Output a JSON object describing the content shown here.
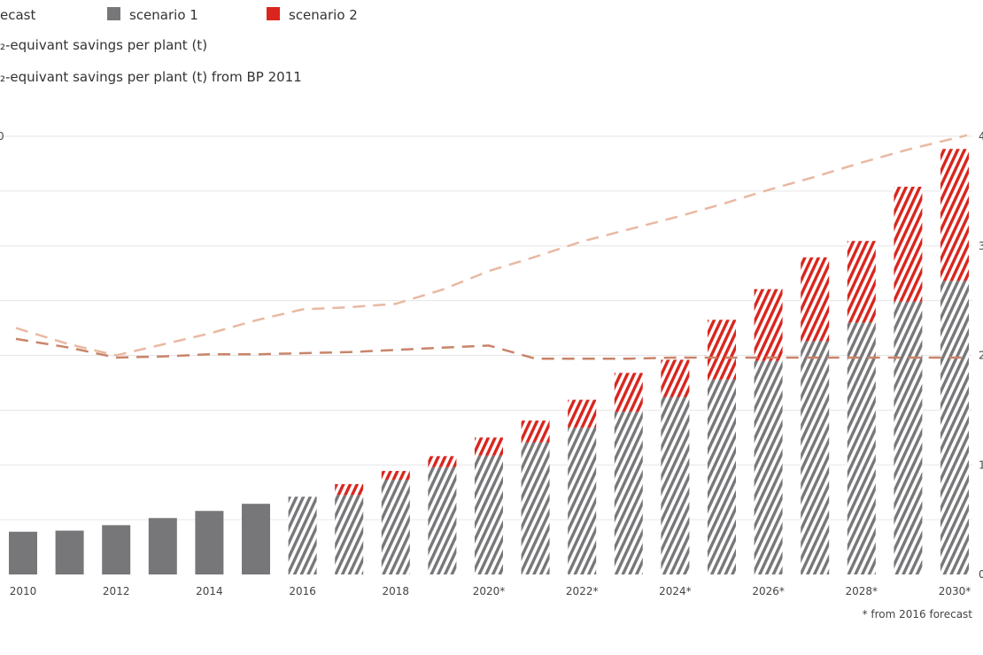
{
  "legend": {
    "forecast_label": "ecast",
    "scenario1_label": "scenario 1",
    "scenario2_label": "scenario 2",
    "savings_label": "₂-equivant savings per plant (t)",
    "savings_bp_label": "₂-equivant savings per plant (t) from BP 2011"
  },
  "footnote": "* from 2016 forecast",
  "colors": {
    "historic": "#77777a",
    "scenario1": "#77777a",
    "scenario2": "#d9251d",
    "savings_line": "#c9846a",
    "savings_bp_line": "#e8b9a2",
    "grid": "#e6e6e6"
  },
  "chart_data": {
    "type": "bar",
    "stacked": true,
    "categories": [
      "2010",
      "2011",
      "2012",
      "2013",
      "2014",
      "2015",
      "2016",
      "2017",
      "2018",
      "2019",
      "2020*",
      "2021",
      "2022*",
      "2023",
      "2024*",
      "2025",
      "2026*",
      "2027",
      "2028*",
      "2029",
      "2030*"
    ],
    "x_tick_labels": [
      "2010",
      "",
      "2012",
      "",
      "2014",
      "",
      "2016",
      "",
      "2018",
      "",
      "2020*",
      "",
      "2022*",
      "",
      "2024*",
      "",
      "2026*",
      "",
      "2028*",
      "",
      "2030*"
    ],
    "ylim": [
      0,
      8
    ],
    "y2lim": [
      0,
      4
    ],
    "visible_y_tick_labels": [
      "0"
    ],
    "visible_y2_tick_labels": [
      "4",
      "3",
      "2",
      "1",
      "0"
    ],
    "grid": true,
    "series": [
      {
        "name": "scenario 1",
        "values": [
          0.78,
          0.8,
          0.9,
          1.03,
          1.16,
          1.29,
          1.42,
          1.45,
          1.73,
          1.96,
          2.17,
          2.41,
          2.68,
          2.97,
          3.24,
          3.56,
          3.9,
          4.26,
          4.6,
          4.98,
          5.36
        ],
        "forecast_hatched_from": "2016"
      },
      {
        "name": "scenario 2",
        "values": [
          0,
          0,
          0,
          0,
          0,
          0,
          0,
          0.2,
          0.16,
          0.2,
          0.33,
          0.4,
          0.51,
          0.71,
          0.68,
          1.09,
          1.31,
          1.53,
          1.49,
          2.1,
          2.41
        ]
      }
    ],
    "lines": [
      {
        "name": "₂-equivant savings per plant (t)",
        "axis": "right",
        "style": "dashed",
        "values": [
          2.15,
          2.07,
          1.98,
          1.99,
          2.01,
          2.01,
          2.02,
          2.03,
          2.05,
          2.07,
          2.09,
          1.97,
          1.97,
          1.97,
          1.98,
          1.98,
          1.98,
          1.98,
          1.98,
          1.98,
          1.98
        ]
      },
      {
        "name": "₂-equivant savings per plant (t) from BP 2011",
        "axis": "right",
        "style": "dashed",
        "values": [
          2.25,
          2.1,
          2.0,
          2.1,
          2.2,
          2.32,
          2.42,
          2.44,
          2.47,
          2.6,
          2.77,
          2.9,
          3.04,
          3.15,
          3.26,
          3.38,
          3.51,
          3.63,
          3.76,
          3.88,
          4.01
        ]
      }
    ]
  }
}
